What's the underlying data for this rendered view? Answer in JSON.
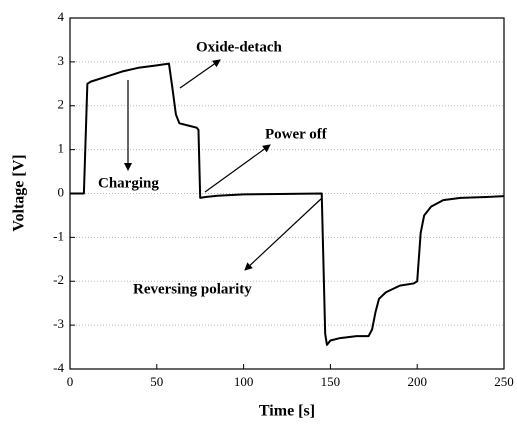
{
  "chart_data": {
    "type": "line",
    "xlabel": "Time [s]",
    "ylabel": "Voltage [V]",
    "annotations": [
      "Oxide-detach",
      "Charging",
      "Power off",
      "Reversing polarity"
    ],
    "x": [
      0,
      8,
      10,
      12,
      20,
      30,
      40,
      50,
      57,
      59,
      61,
      63,
      68,
      73,
      74,
      75,
      78,
      85,
      100,
      120,
      145,
      147,
      148,
      150,
      155,
      165,
      172,
      174,
      176,
      178,
      182,
      190,
      198,
      200,
      202,
      204,
      208,
      215,
      225,
      240,
      250
    ],
    "values": [
      0,
      0,
      2.5,
      2.55,
      2.65,
      2.78,
      2.87,
      2.92,
      2.96,
      2.4,
      1.8,
      1.6,
      1.55,
      1.5,
      1.45,
      -0.1,
      -0.08,
      -0.05,
      -0.02,
      -0.01,
      0,
      -3.2,
      -3.45,
      -3.35,
      -3.3,
      -3.25,
      -3.25,
      -3.1,
      -2.7,
      -2.4,
      -2.25,
      -2.1,
      -2.05,
      -2,
      -0.9,
      -0.5,
      -0.3,
      -0.15,
      -0.1,
      -0.08,
      -0.06
    ],
    "color": "#000000",
    "xlim": [
      0,
      250
    ],
    "xticks": [
      0,
      50,
      100,
      150,
      200,
      250
    ],
    "ylim": [
      -4,
      4
    ],
    "yticks": [
      -4,
      -3,
      -2,
      -1,
      0,
      1,
      2,
      3,
      4
    ],
    "grid": true
  }
}
